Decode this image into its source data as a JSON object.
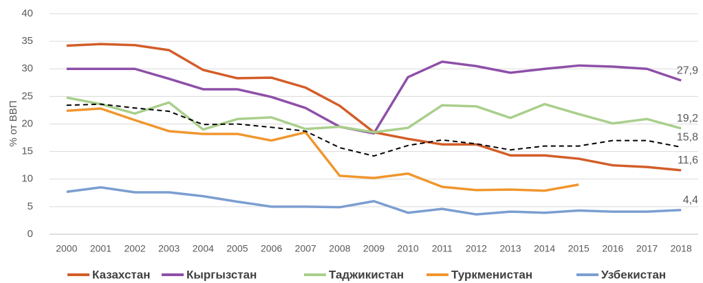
{
  "chart_data": {
    "type": "line",
    "y_label": "% от ВВП",
    "categories": [
      "2000",
      "2001",
      "2002",
      "2003",
      "2004",
      "2005",
      "2006",
      "2007",
      "2008",
      "2009",
      "2010",
      "2011",
      "2012",
      "2013",
      "2014",
      "2015",
      "2016",
      "2017",
      "2018"
    ],
    "ylim": [
      0,
      40
    ],
    "yticks": [
      0,
      5,
      10,
      15,
      20,
      25,
      30,
      35,
      40
    ],
    "grid": true,
    "legend": "bottom",
    "series": [
      {
        "name": "Казахстан",
        "color": "#d35d28",
        "values": [
          34.2,
          34.5,
          34.3,
          33.4,
          29.8,
          28.3,
          28.4,
          26.6,
          23.3,
          18.5,
          17.3,
          16.3,
          16.3,
          14.3,
          14.3,
          13.7,
          12.5,
          12.2,
          11.6
        ],
        "value_labels": [
          null,
          null,
          null,
          null,
          null,
          null,
          null,
          null,
          null,
          null,
          null,
          null,
          null,
          null,
          null,
          null,
          null,
          null,
          "11,6"
        ]
      },
      {
        "name": "Кыргызстан",
        "color": "#8e4fa8",
        "values": [
          30,
          30,
          30,
          28.2,
          26.3,
          26.3,
          24.9,
          22.9,
          19.5,
          18.3,
          28.5,
          31.3,
          30.5,
          29.3,
          30,
          30.6,
          30.4,
          30,
          27.9
        ],
        "value_labels": [
          null,
          null,
          null,
          null,
          null,
          null,
          null,
          null,
          null,
          null,
          null,
          null,
          null,
          null,
          null,
          null,
          null,
          null,
          "27,9"
        ]
      },
      {
        "name": "Таджикистан",
        "color": "#a9cf8b",
        "values": [
          24.8,
          23.6,
          21.9,
          23.9,
          19,
          20.9,
          21.2,
          19.1,
          19.5,
          18.5,
          19.3,
          23.4,
          23.2,
          21.1,
          23.6,
          21.8,
          20.1,
          20.9,
          19.2
        ],
        "value_labels": [
          null,
          null,
          null,
          null,
          null,
          null,
          null,
          null,
          null,
          null,
          null,
          null,
          null,
          null,
          null,
          null,
          null,
          null,
          "19,2"
        ]
      },
      {
        "name": "Туркменистан",
        "color": "#f0962e",
        "values": [
          22.4,
          22.8,
          20.7,
          18.7,
          18.2,
          18.2,
          17,
          18.5,
          10.6,
          10.2,
          11,
          8.6,
          8,
          8.1,
          7.9,
          9,
          null,
          null,
          null
        ]
      },
      {
        "name": "Узбекистан",
        "color": "#7b9ed0",
        "values": [
          7.7,
          8.5,
          7.6,
          7.6,
          6.9,
          5.9,
          5,
          5,
          4.9,
          6,
          3.9,
          4.6,
          3.6,
          4.1,
          3.9,
          4.3,
          4.1,
          4.1,
          4.4
        ],
        "value_labels": [
          null,
          null,
          null,
          null,
          null,
          null,
          null,
          null,
          null,
          null,
          null,
          null,
          null,
          null,
          null,
          null,
          null,
          null,
          "4,4"
        ]
      },
      {
        "color": "#000000",
        "dashed": true,
        "values": [
          23.4,
          23.6,
          22.9,
          22.3,
          19.9,
          20,
          19.4,
          18.7,
          15.7,
          14.2,
          16.1,
          17.1,
          16.4,
          15.3,
          16,
          16,
          17,
          17,
          15.8
        ],
        "value_labels": [
          null,
          null,
          null,
          null,
          null,
          null,
          null,
          null,
          null,
          null,
          null,
          null,
          null,
          null,
          null,
          null,
          null,
          null,
          "15,8"
        ]
      }
    ]
  }
}
